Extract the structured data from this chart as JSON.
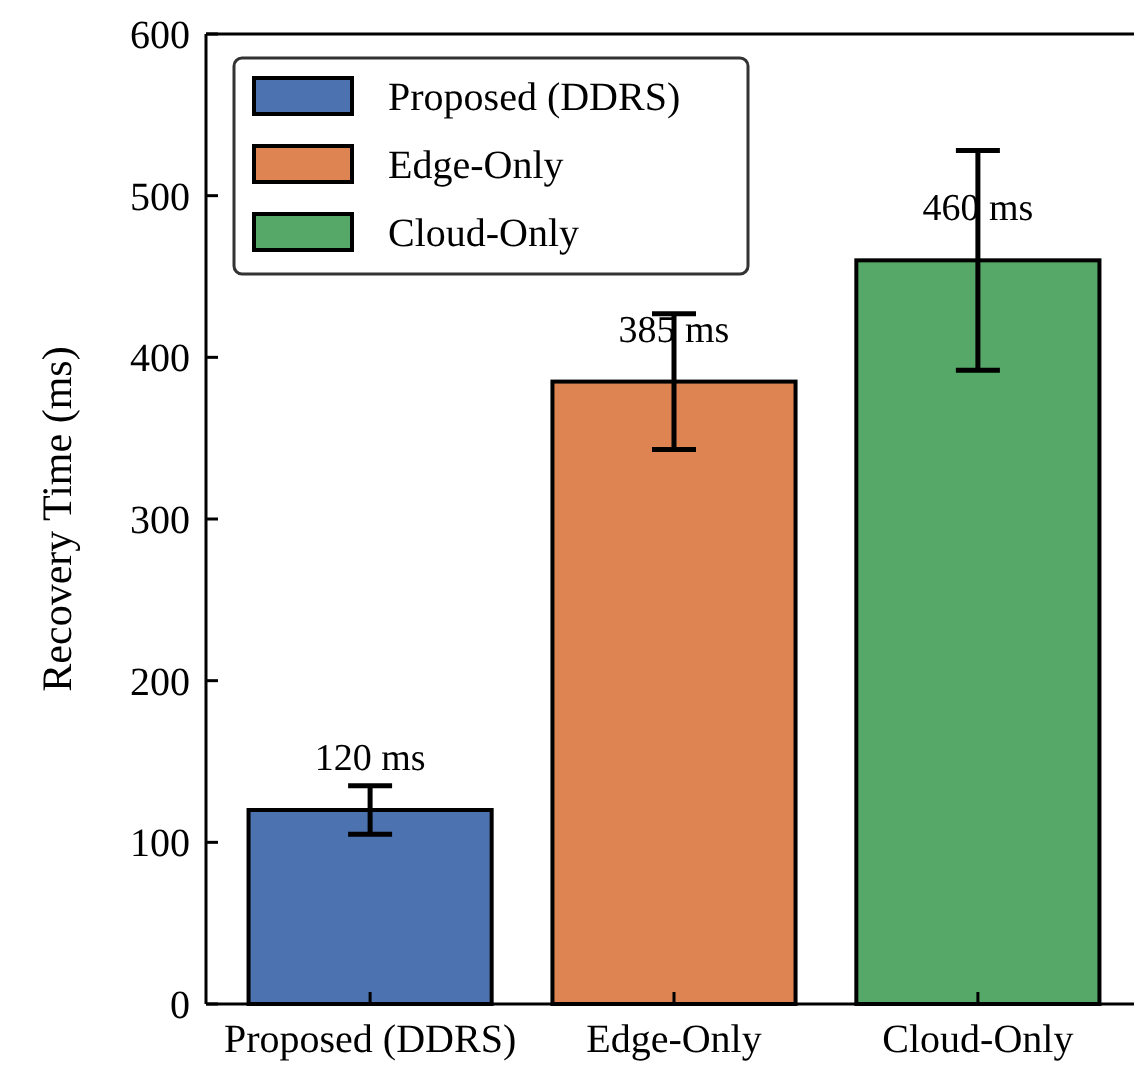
{
  "chart_data": {
    "type": "bar",
    "ylabel": "Recovery Time (ms)",
    "categories": [
      "Proposed (DDRS)",
      "Edge-Only",
      "Cloud-Only"
    ],
    "series": [
      {
        "name": "Proposed (DDRS)",
        "color": "#4c72b0",
        "values": [
          120,
          null,
          null
        ],
        "errors": [
          15,
          null,
          null
        ],
        "value_labels": [
          "120 ms",
          null,
          null
        ]
      },
      {
        "name": "Edge-Only",
        "color": "#dd8452",
        "values": [
          null,
          385,
          null
        ],
        "errors": [
          null,
          42,
          null
        ],
        "value_labels": [
          null,
          "385 ms",
          null
        ]
      },
      {
        "name": "Cloud-Only",
        "color": "#55a868",
        "values": [
          null,
          null,
          460
        ],
        "errors": [
          null,
          null,
          68
        ],
        "value_labels": [
          null,
          null,
          "460 ms"
        ]
      }
    ],
    "ylim": [
      0,
      600
    ],
    "yticks": [
      0,
      100,
      200,
      300,
      400,
      500,
      600
    ],
    "legend": "top left",
    "grid": false
  }
}
